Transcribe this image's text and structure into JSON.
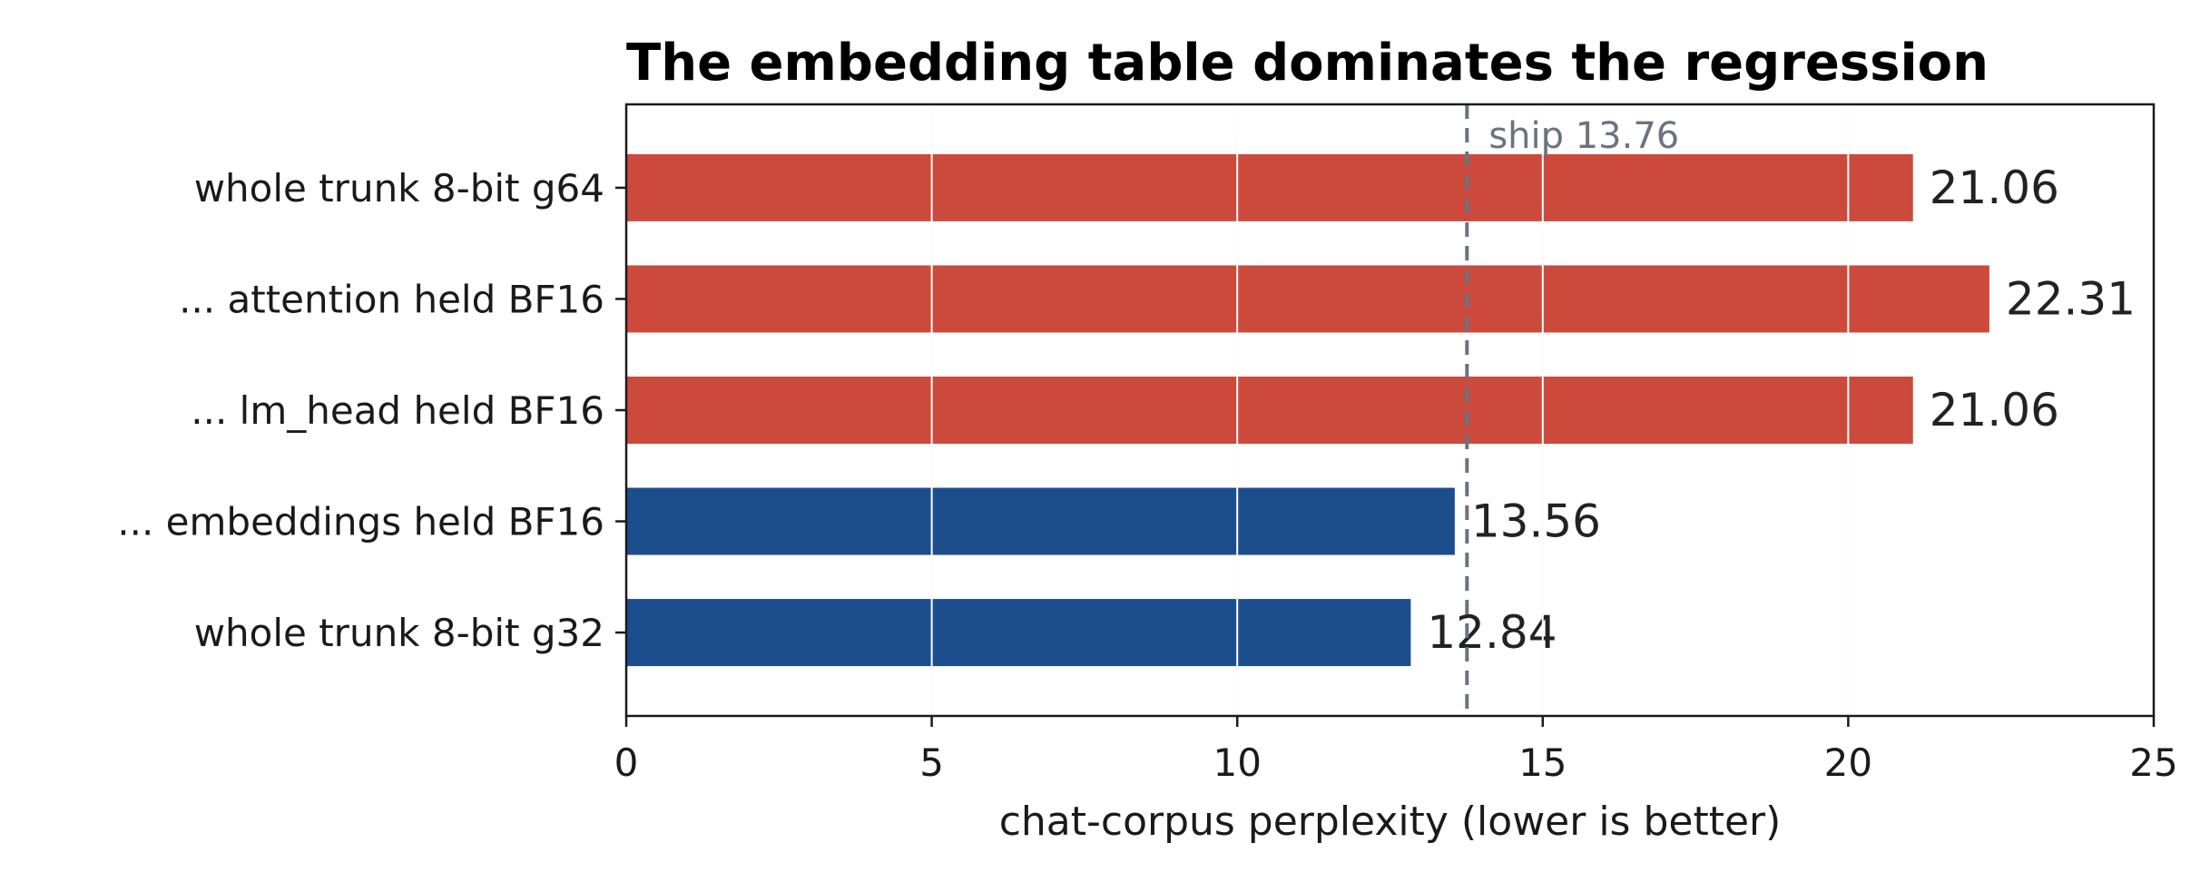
{
  "chart_data": {
    "type": "bar",
    "orientation": "horizontal",
    "title": "The embedding table dominates the regression",
    "xlabel": "chat-corpus perplexity (lower is better)",
    "ylabel": "",
    "xlim": [
      0,
      25
    ],
    "xticks": [
      0,
      5,
      10,
      15,
      20,
      25
    ],
    "grid": "vertical",
    "categories": [
      "whole trunk 8-bit g64",
      "... attention held BF16",
      "... lm_head held BF16",
      "... embeddings held BF16",
      "whole trunk 8-bit g32"
    ],
    "values": [
      21.06,
      22.31,
      21.06,
      13.56,
      12.84
    ],
    "value_labels": [
      "21.06",
      "22.31",
      "21.06",
      "13.56",
      "12.84"
    ],
    "bar_colors": [
      "#cc4a3c",
      "#cc4a3c",
      "#cc4a3c",
      "#1c4e8d",
      "#1c4e8d"
    ],
    "reference_line": {
      "value": 13.76,
      "label": "ship 13.76",
      "color": "#6b7280",
      "style": "dashed"
    }
  }
}
